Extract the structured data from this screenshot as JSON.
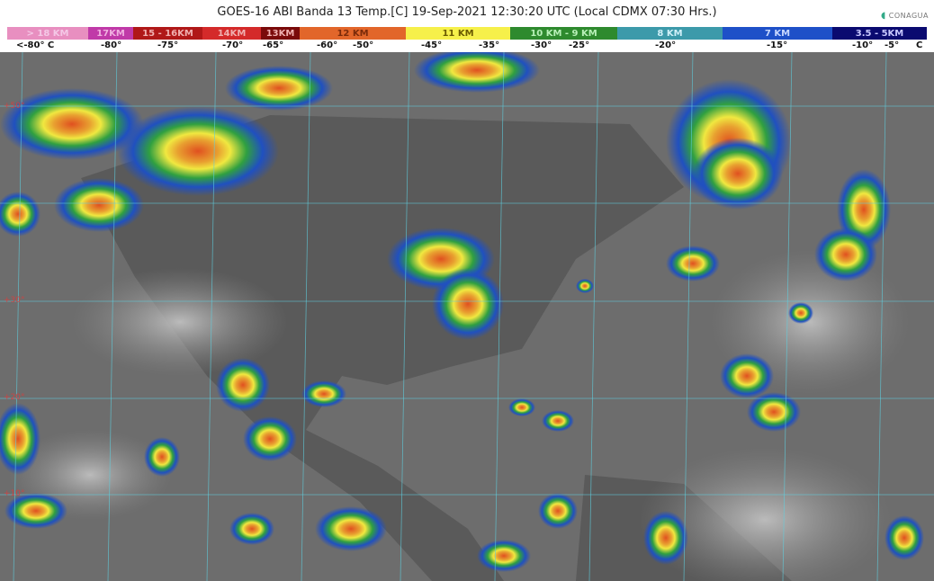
{
  "header": {
    "title": "GOES-16 ABI Banda 13 Temp.[C] 19-Sep-2021 12:30:20 UTC (Local CDMX  07:30 Hrs.)",
    "logo_text": "CONAGUA"
  },
  "legend": {
    "segments": [
      {
        "label": "> 18 KM",
        "color": "#e88fc0",
        "text_color": "#f4c8e6"
      },
      {
        "label": "17KM",
        "color": "#c03aa8",
        "text_color": "#f0b0e0"
      },
      {
        "label": "15 - 16KM",
        "color": "#b01818",
        "text_color": "#f0b0b0"
      },
      {
        "label": "14KM",
        "color": "#d42a2a",
        "text_color": "#f0b0b0"
      },
      {
        "label": "13KM",
        "color": "#7a0a0a",
        "text_color": "#f0b0b0"
      },
      {
        "label": "12 KM",
        "color": "#e2662a",
        "text_color": "#7a2a0a"
      },
      {
        "label": "11 KM",
        "color": "#f6f04a",
        "text_color": "#6a5a00"
      },
      {
        "label": "10 KM -  9 KM",
        "color": "#2e8a2e",
        "text_color": "#b8f0b8"
      },
      {
        "label": "8 KM",
        "color": "#3c9aaa",
        "text_color": "#d0f0f8"
      },
      {
        "label": "7 KM",
        "color": "#1e50c8",
        "text_color": "#c8d8ff"
      },
      {
        "label": "3.5 - 5KM",
        "color": "#0a0a70",
        "text_color": "#c8c8ff"
      }
    ],
    "temperatures": [
      "<-80° C",
      "-80°",
      "-75°",
      "-70°",
      "-65°",
      "-60°",
      "-50°",
      "-45°",
      "-35°",
      "-30°",
      "-25°",
      "-20°",
      "-15°",
      "-10°",
      "-5°",
      "C"
    ]
  },
  "map": {
    "latitude_labels": [
      "+50°",
      "+30°",
      "+20°",
      "+10°"
    ],
    "grid_color": "#5fd0e0",
    "background_color": "#6d6d6d"
  }
}
